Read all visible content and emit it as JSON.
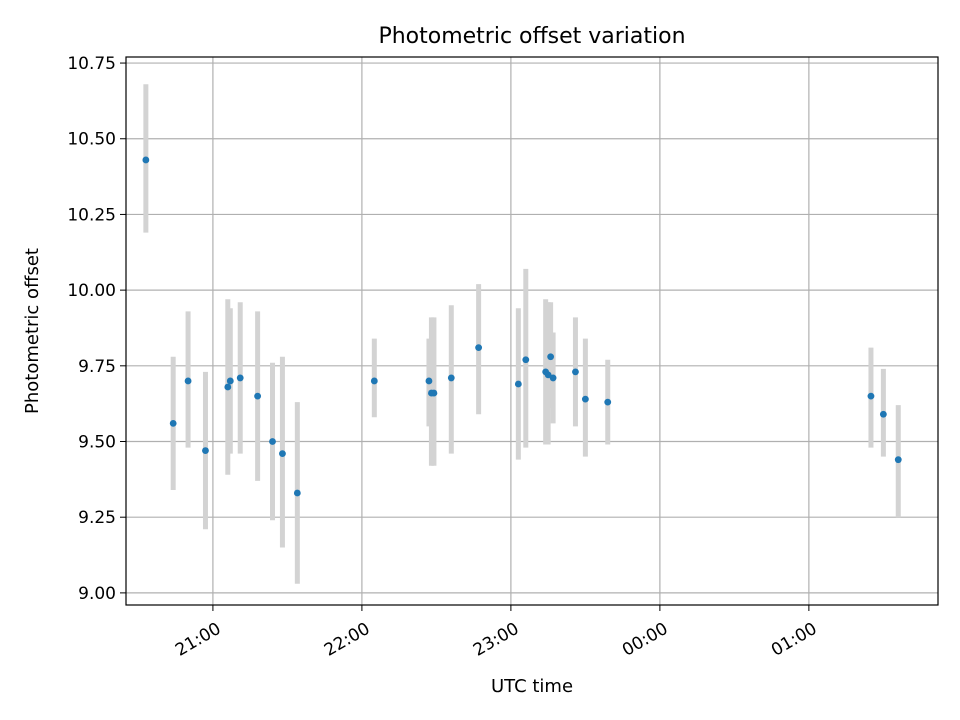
{
  "chart_data": {
    "type": "scatter",
    "title": "Photometric offset variation",
    "xlabel": "UTC time",
    "ylabel": "Photometric offset",
    "ylim": [
      8.96,
      10.77
    ],
    "xlim": [
      "20:25",
      "01:52"
    ],
    "yticks": [
      9.0,
      9.25,
      9.5,
      9.75,
      10.0,
      10.25,
      10.5,
      10.75
    ],
    "ytick_labels": [
      "9.00",
      "9.25",
      "9.50",
      "9.75",
      "10.00",
      "10.25",
      "10.50",
      "10.75"
    ],
    "xticks": [
      "21:00",
      "22:00",
      "23:00",
      "00:00",
      "01:00"
    ],
    "grid": true,
    "point_color": "#1f77b4",
    "errorbar_color": "#d3d3d3",
    "points": [
      {
        "x": "20:33",
        "y": 10.43,
        "ylow": 10.19,
        "yhigh": 10.68
      },
      {
        "x": "20:44",
        "y": 9.56,
        "ylow": 9.34,
        "yhigh": 9.78
      },
      {
        "x": "20:50",
        "y": 9.7,
        "ylow": 9.48,
        "yhigh": 9.93
      },
      {
        "x": "20:57",
        "y": 9.47,
        "ylow": 9.21,
        "yhigh": 9.73
      },
      {
        "x": "21:06",
        "y": 9.68,
        "ylow": 9.39,
        "yhigh": 9.97
      },
      {
        "x": "21:07",
        "y": 9.7,
        "ylow": 9.46,
        "yhigh": 9.94
      },
      {
        "x": "21:11",
        "y": 9.71,
        "ylow": 9.46,
        "yhigh": 9.96
      },
      {
        "x": "21:18",
        "y": 9.65,
        "ylow": 9.37,
        "yhigh": 9.93
      },
      {
        "x": "21:24",
        "y": 9.5,
        "ylow": 9.24,
        "yhigh": 9.76
      },
      {
        "x": "21:28",
        "y": 9.46,
        "ylow": 9.15,
        "yhigh": 9.78
      },
      {
        "x": "21:34",
        "y": 9.33,
        "ylow": 9.03,
        "yhigh": 9.63
      },
      {
        "x": "22:05",
        "y": 9.7,
        "ylow": 9.58,
        "yhigh": 9.84
      },
      {
        "x": "22:27",
        "y": 9.7,
        "ylow": 9.55,
        "yhigh": 9.84
      },
      {
        "x": "22:28",
        "y": 9.66,
        "ylow": 9.42,
        "yhigh": 9.91
      },
      {
        "x": "22:29",
        "y": 9.66,
        "ylow": 9.42,
        "yhigh": 9.91
      },
      {
        "x": "22:36",
        "y": 9.71,
        "ylow": 9.46,
        "yhigh": 9.95
      },
      {
        "x": "22:47",
        "y": 9.81,
        "ylow": 9.59,
        "yhigh": 10.02
      },
      {
        "x": "23:03",
        "y": 9.69,
        "ylow": 9.44,
        "yhigh": 9.94
      },
      {
        "x": "23:06",
        "y": 9.77,
        "ylow": 9.48,
        "yhigh": 10.07
      },
      {
        "x": "23:14",
        "y": 9.73,
        "ylow": 9.49,
        "yhigh": 9.97
      },
      {
        "x": "23:15",
        "y": 9.72,
        "ylow": 9.49,
        "yhigh": 9.96
      },
      {
        "x": "23:16",
        "y": 9.78,
        "ylow": 9.61,
        "yhigh": 9.96
      },
      {
        "x": "23:17",
        "y": 9.71,
        "ylow": 9.56,
        "yhigh": 9.86
      },
      {
        "x": "23:26",
        "y": 9.73,
        "ylow": 9.55,
        "yhigh": 9.91
      },
      {
        "x": "23:30",
        "y": 9.64,
        "ylow": 9.45,
        "yhigh": 9.84
      },
      {
        "x": "23:39",
        "y": 9.63,
        "ylow": 9.49,
        "yhigh": 9.77
      },
      {
        "x": "01:25",
        "y": 9.65,
        "ylow": 9.48,
        "yhigh": 9.81
      },
      {
        "x": "01:30",
        "y": 9.59,
        "ylow": 9.45,
        "yhigh": 9.74
      },
      {
        "x": "01:36",
        "y": 9.44,
        "ylow": 9.25,
        "yhigh": 9.62
      }
    ]
  }
}
